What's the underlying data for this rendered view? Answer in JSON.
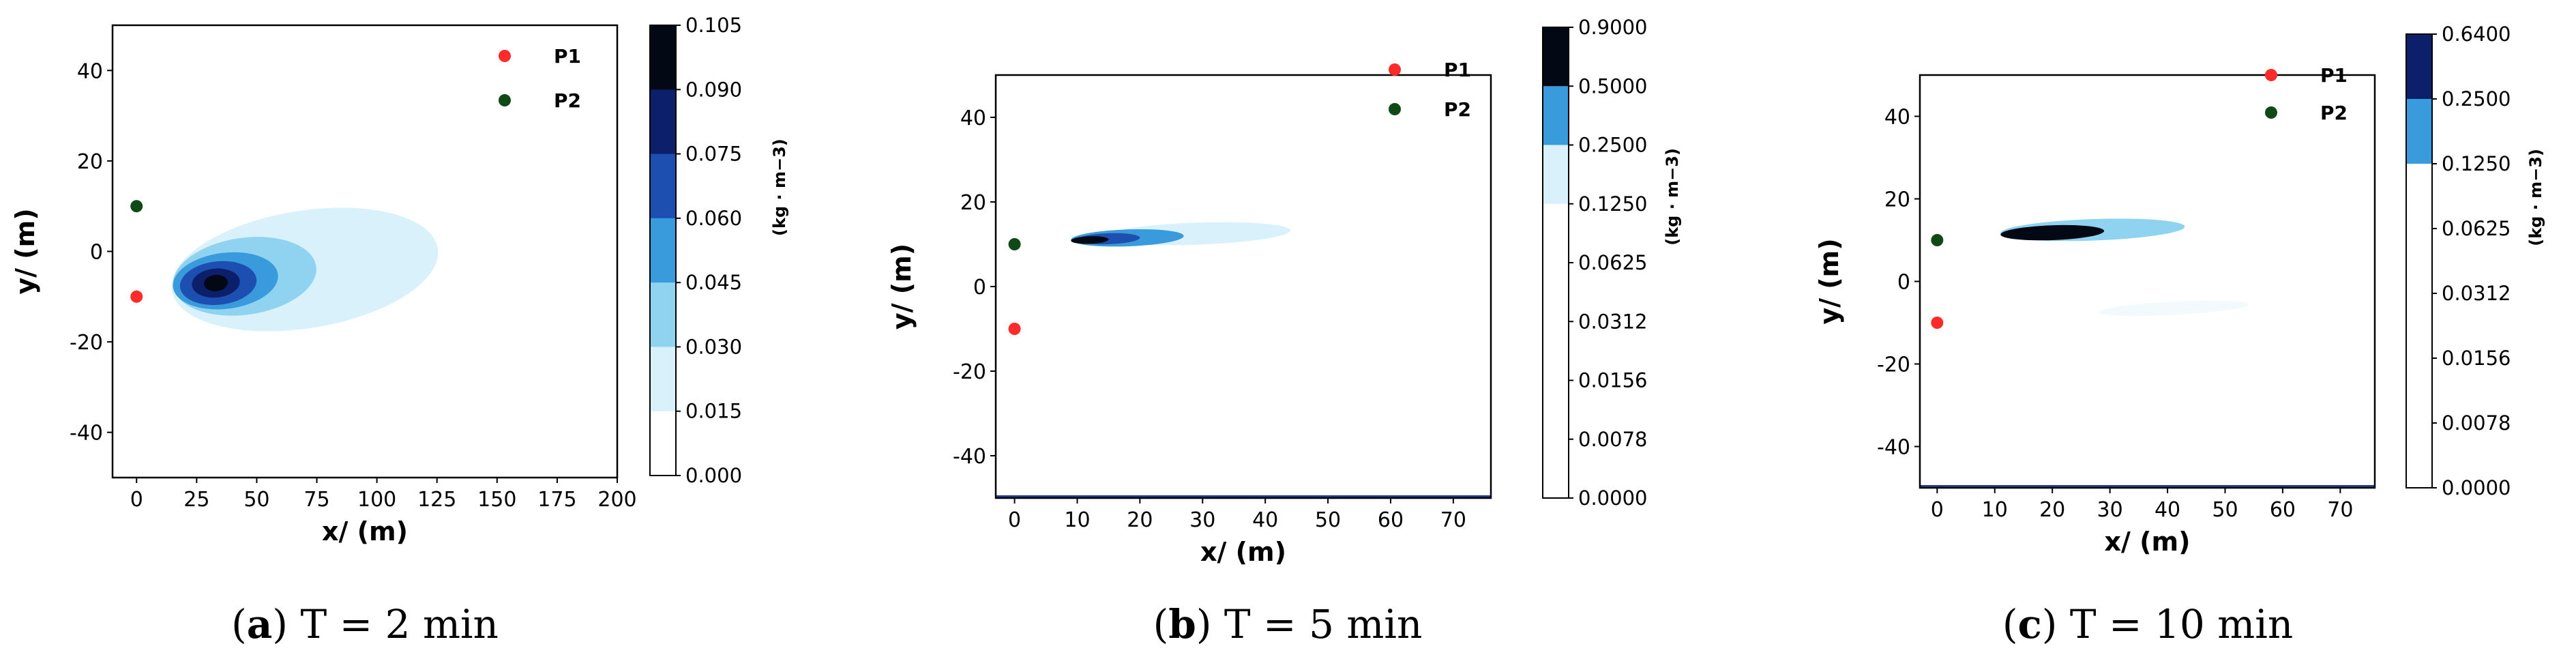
{
  "chart_data": [
    {
      "type": "contour",
      "caption_letter": "a",
      "caption_text": " T = 2 min",
      "xlabel": "x/ (m)",
      "ylabel": "y/ (m)",
      "xlim": [
        -10,
        200
      ],
      "ylim": [
        -50,
        50
      ],
      "x_ticks": [
        "0",
        "25",
        "50",
        "75",
        "100",
        "125",
        "150",
        "175",
        "200"
      ],
      "y_ticks": [
        "40",
        "20",
        "0",
        "-20",
        "-40"
      ],
      "points": [
        {
          "name": "P1",
          "x": 0,
          "y": -10,
          "color": "#ff2a2a"
        },
        {
          "name": "P2",
          "x": 0,
          "y": 10,
          "color": "#0f4a16"
        }
      ],
      "contours": [
        {
          "cx": 70,
          "cy": -4,
          "rx": 56,
          "ry": 13,
          "rot": 9,
          "color": "#d8f1fb"
        },
        {
          "cx": 45,
          "cy": -5.5,
          "rx": 30,
          "ry": 8.5,
          "rot": 8,
          "color": "#8fd3f0"
        },
        {
          "cx": 37,
          "cy": -6.5,
          "rx": 22,
          "ry": 6.2,
          "rot": 7,
          "color": "#3a9bdc"
        },
        {
          "cx": 34,
          "cy": -7,
          "rx": 16,
          "ry": 4.8,
          "rot": 6,
          "color": "#1d4fb0"
        },
        {
          "cx": 33,
          "cy": -7,
          "rx": 10,
          "ry": 3.2,
          "rot": 5,
          "color": "#0b1f6b"
        },
        {
          "cx": 33,
          "cy": -7,
          "rx": 5,
          "ry": 1.8,
          "rot": 5,
          "color": "#030815"
        }
      ],
      "colorbar": {
        "label": "(kg · m−3)",
        "ticks": [
          "0.105",
          "0.090",
          "0.075",
          "0.060",
          "0.045",
          "0.030",
          "0.015",
          "0.000"
        ],
        "colors": [
          "#030815",
          "#0b1f6b",
          "#1d4fb0",
          "#3a9bdc",
          "#8fd3f0",
          "#d8f1fb",
          "#ffffff"
        ]
      }
    },
    {
      "type": "contour",
      "caption_letter": "b",
      "caption_text": " T = 5 min",
      "xlabel": "x/ (m)",
      "ylabel": "y/ (m)",
      "xlim": [
        -3,
        76
      ],
      "ylim": [
        -50,
        50
      ],
      "x_ticks": [
        "0",
        "10",
        "20",
        "30",
        "40",
        "50",
        "60",
        "70"
      ],
      "y_ticks": [
        "40",
        "20",
        "0",
        "-20",
        "-40"
      ],
      "points": [
        {
          "name": "P1",
          "x": 0,
          "y": -10,
          "color": "#ff2a2a"
        },
        {
          "name": "P2",
          "x": 0,
          "y": 10,
          "color": "#0f4a16"
        }
      ],
      "contours": [
        {
          "cx": 29,
          "cy": 12.5,
          "rx": 15,
          "ry": 2.6,
          "rot": 2,
          "color": "#d8f1fb"
        },
        {
          "cx": 18,
          "cy": 11.5,
          "rx": 9,
          "ry": 2.0,
          "rot": 2,
          "color": "#3a9bdc"
        },
        {
          "cx": 15,
          "cy": 11.3,
          "rx": 5,
          "ry": 1.3,
          "rot": 2,
          "color": "#1d4fb0"
        },
        {
          "cx": 12,
          "cy": 11,
          "rx": 3,
          "ry": 0.9,
          "rot": 2,
          "color": "#030815"
        }
      ],
      "colorbar": {
        "label": "(kg · m−3)",
        "ticks": [
          "0.9000",
          "0.5000",
          "0.2500",
          "0.1250",
          "0.0625",
          "0.0312",
          "0.0156",
          "0.0078",
          "0.0000"
        ],
        "colors": [
          "#030815",
          "#3a9bdc",
          "#d8f1fb",
          "#ffffff",
          "#ffffff",
          "#ffffff",
          "#ffffff",
          "#ffffff"
        ]
      }
    },
    {
      "type": "contour",
      "caption_letter": "c",
      "caption_text": " T = 10 min",
      "xlabel": "x/ (m)",
      "ylabel": "y/ (m)",
      "xlim": [
        -3,
        76
      ],
      "ylim": [
        -50,
        50
      ],
      "x_ticks": [
        "0",
        "10",
        "20",
        "30",
        "40",
        "50",
        "60",
        "70"
      ],
      "y_ticks": [
        "40",
        "20",
        "0",
        "-20",
        "-40"
      ],
      "points": [
        {
          "name": "P1",
          "x": 0,
          "y": -10,
          "color": "#ff2a2a"
        },
        {
          "name": "P2",
          "x": 0,
          "y": 10,
          "color": "#0f4a16"
        }
      ],
      "contours": [
        {
          "cx": 41,
          "cy": -6.5,
          "rx": 13,
          "ry": 1.6,
          "rot": 3,
          "color": "#f2fafd"
        },
        {
          "cx": 27,
          "cy": 12.5,
          "rx": 16,
          "ry": 2.6,
          "rot": 2,
          "color": "#8fd3f0"
        },
        {
          "cx": 20,
          "cy": 11.8,
          "rx": 9,
          "ry": 1.8,
          "rot": 2,
          "color": "#030815"
        }
      ],
      "colorbar": {
        "label": "(kg · m−3)",
        "ticks": [
          "0.6400",
          "0.2500",
          "0.1250",
          "0.0625",
          "0.0312",
          "0.0156",
          "0.0078",
          "0.0000"
        ],
        "colors": [
          "#0b1f6b",
          "#3a9bdc",
          "#ffffff",
          "#ffffff",
          "#ffffff",
          "#ffffff",
          "#ffffff"
        ]
      }
    }
  ]
}
